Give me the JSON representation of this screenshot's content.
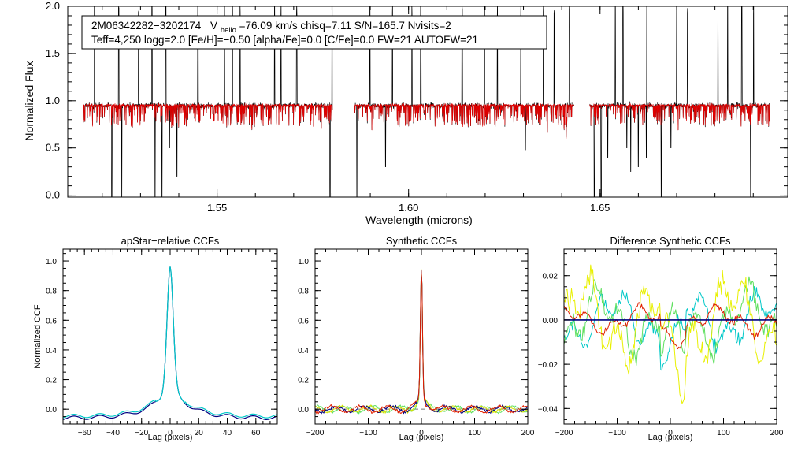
{
  "info": {
    "star_id": "2M06342282−3202174",
    "v_prefix": "V",
    "v_sub": "helio",
    "v_rest": "=76.09 km/s  chisq=7.11  S/N=165.7  Nvisits=2",
    "line2": "Teff=4,250 logg=2.0 [Fe/H]=−0.50 [alpha/Fe]=0.0 [C/Fe]=0.0 FW=21 AUTOFW=21"
  },
  "colors": {
    "observed": "#000000",
    "model": "#e00000",
    "zero_line": "#777777",
    "ccf_palette": [
      "#000080",
      "#00c8c8",
      "#b8e000",
      "#ffff40",
      "#e02000",
      "#60e060"
    ]
  },
  "chart_data": [
    {
      "id": "spectrum",
      "type": "line",
      "title": "",
      "xlabel": "Wavelength (microns)",
      "ylabel": "Normalized Flux",
      "xlim": [
        1.511,
        1.699
      ],
      "ylim": [
        -0.02,
        2.0
      ],
      "xticks": [
        1.55,
        1.6,
        1.65
      ],
      "xtick_labels": [
        "1.55",
        "1.60",
        "1.65"
      ],
      "yticks": [
        0.0,
        0.5,
        1.0,
        1.5,
        2.0
      ],
      "ytick_labels": [
        "0.0",
        "0.5",
        "1.0",
        "1.5",
        "2.0"
      ],
      "chips": [
        [
          1.515,
          1.5801
        ],
        [
          1.5858,
          1.6432
        ],
        [
          1.6473,
          1.6942
        ]
      ],
      "continuum": 0.95,
      "spikes": [
        1.518,
        1.5243,
        1.5295,
        1.533,
        1.5366,
        1.545,
        1.5519,
        1.554,
        1.556,
        1.565,
        1.5667,
        1.5708,
        1.58,
        1.5899,
        1.5958,
        1.6009,
        1.6032,
        1.614,
        1.6198,
        1.6232,
        1.6293,
        1.6352,
        1.638,
        1.642,
        1.654,
        1.656,
        1.6622,
        1.666,
        1.67,
        1.6728,
        1.6808,
        1.6833,
        1.687,
        1.6901
      ],
      "dips": [
        [
          1.5225,
          -0.02
        ],
        [
          1.5251,
          -0.02
        ],
        [
          1.5338,
          -0.02
        ],
        [
          1.5356,
          -0.02
        ],
        [
          1.5376,
          0.5
        ],
        [
          1.5395,
          0.2
        ],
        [
          1.5795,
          -0.02
        ],
        [
          1.5865,
          -0.02
        ],
        [
          1.594,
          0.3
        ],
        [
          1.6305,
          0.48
        ],
        [
          1.6485,
          -0.02
        ],
        [
          1.6503,
          -0.02
        ],
        [
          1.652,
          0.4
        ],
        [
          1.657,
          0.5
        ],
        [
          1.658,
          0.25
        ],
        [
          1.66,
          0.3
        ],
        [
          1.6621,
          0.4
        ],
        [
          1.666,
          -0.02
        ],
        [
          1.6685,
          0.5
        ],
        [
          1.6893,
          -0.02
        ]
      ]
    },
    {
      "id": "apstar-ccf",
      "type": "line",
      "title": "apStar−relative CCFs",
      "xlabel": "Lag (pixels)",
      "ylabel": "Normalized CCF",
      "xlim": [
        -75,
        75
      ],
      "ylim": [
        -0.1,
        1.08
      ],
      "xticks": [
        -60,
        -40,
        -20,
        0,
        20,
        40,
        60
      ],
      "xtick_labels": [
        "−60",
        "−40",
        "−20",
        "0",
        "20",
        "40",
        "60"
      ],
      "yticks": [
        0.0,
        0.2,
        0.4,
        0.6,
        0.8,
        1.0
      ],
      "ytick_labels": [
        "0.0",
        "0.2",
        "0.4",
        "0.6",
        "0.8",
        "1.0"
      ],
      "peak": 1.0,
      "series": [
        {
          "name": "visit 1",
          "color": "#000080",
          "offset": 0.0
        },
        {
          "name": "visit 2",
          "color": "#00c8c8",
          "offset": 0.012
        }
      ]
    },
    {
      "id": "synthetic-ccf",
      "type": "line",
      "title": "Synthetic CCFs",
      "xlabel": "Lag (pixels)",
      "ylabel": "",
      "xlim": [
        -200,
        200
      ],
      "ylim": [
        -0.1,
        1.08
      ],
      "xticks": [
        -200,
        -100,
        0,
        100,
        200
      ],
      "xtick_labels": [
        "−200",
        "−100",
        "0",
        "100",
        "200"
      ],
      "yticks": [
        0.0,
        0.2,
        0.4,
        0.6,
        0.8,
        1.0
      ],
      "ytick_labels": [
        "0.0",
        "0.2",
        "0.4",
        "0.6",
        "0.8",
        "1.0"
      ],
      "zero_line": 0.0,
      "peak": 1.0,
      "series": [
        {
          "name": "green",
          "color": "#60e060"
        },
        {
          "name": "yellow",
          "color": "#d8e000"
        },
        {
          "name": "blue",
          "color": "#000080"
        },
        {
          "name": "red",
          "color": "#e02000"
        }
      ]
    },
    {
      "id": "difference-ccf",
      "type": "line",
      "title": "Difference Synthetic CCFs",
      "xlabel": "Lag (pixels)",
      "ylabel": "",
      "xlim": [
        -200,
        200
      ],
      "ylim": [
        -0.047,
        0.032
      ],
      "xticks": [
        -200,
        -100,
        0,
        100,
        200
      ],
      "xtick_labels": [
        "−200",
        "−100",
        "0",
        "100",
        "200"
      ],
      "yticks": [
        -0.04,
        -0.02,
        0.0,
        0.02
      ],
      "ytick_labels": [
        "−0.04",
        "−0.02",
        "0.00",
        "0.02"
      ],
      "zero_line": 0.0,
      "series": [
        {
          "name": "cyan",
          "color": "#00c8c8",
          "amp": 0.012
        },
        {
          "name": "green",
          "color": "#60e060",
          "amp": 0.015
        },
        {
          "name": "yellow",
          "color": "#e8f000",
          "amp": 0.02
        },
        {
          "name": "red",
          "color": "#e02000",
          "amp": 0.006
        },
        {
          "name": "blue",
          "color": "#000080",
          "amp": 0.0
        }
      ]
    }
  ]
}
